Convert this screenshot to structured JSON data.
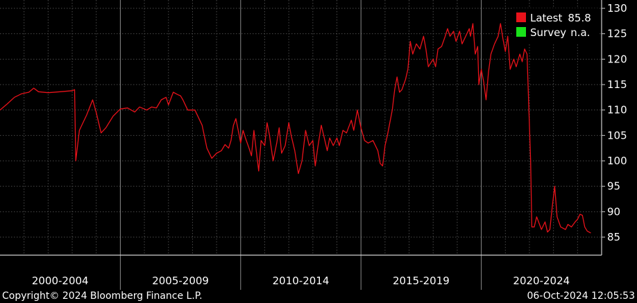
{
  "chart_data": {
    "type": "line",
    "x_range": [
      2000.0,
      2025.0
    ],
    "ylim": [
      82,
      131
    ],
    "y_ticks": [
      85,
      90,
      95,
      100,
      105,
      110,
      115,
      120,
      125,
      130
    ],
    "grid": true,
    "legend_position": "top-right",
    "periods": [
      {
        "label": "2000-2004",
        "start": 2000,
        "end": 2005
      },
      {
        "label": "2005-2009",
        "start": 2005,
        "end": 2010
      },
      {
        "label": "2010-2014",
        "start": 2010,
        "end": 2015
      },
      {
        "label": "2015-2019",
        "start": 2015,
        "end": 2020
      },
      {
        "label": "2020-2024",
        "start": 2020,
        "end": 2025
      }
    ],
    "series": [
      {
        "name": "Latest",
        "latest_value": "85.8",
        "color": "#e8121a",
        "points": [
          [
            2000.0,
            110.0
          ],
          [
            2000.3,
            111.2
          ],
          [
            2000.6,
            112.5
          ],
          [
            2000.9,
            113.2
          ],
          [
            2001.2,
            113.5
          ],
          [
            2001.4,
            114.3
          ],
          [
            2001.6,
            113.6
          ],
          [
            2002.0,
            113.4
          ],
          [
            2002.5,
            113.6
          ],
          [
            2003.0,
            113.8
          ],
          [
            2003.1,
            114.0
          ],
          [
            2003.15,
            100.0
          ],
          [
            2003.3,
            106.0
          ],
          [
            2003.6,
            109.0
          ],
          [
            2003.85,
            112.0
          ],
          [
            2004.0,
            109.5
          ],
          [
            2004.2,
            105.5
          ],
          [
            2004.4,
            106.5
          ],
          [
            2004.7,
            108.8
          ],
          [
            2005.0,
            110.2
          ],
          [
            2005.3,
            110.4
          ],
          [
            2005.6,
            109.6
          ],
          [
            2005.8,
            110.6
          ],
          [
            2006.1,
            110.0
          ],
          [
            2006.3,
            110.6
          ],
          [
            2006.5,
            110.4
          ],
          [
            2006.7,
            112.0
          ],
          [
            2006.9,
            112.5
          ],
          [
            2007.0,
            111.0
          ],
          [
            2007.2,
            113.5
          ],
          [
            2007.4,
            113.0
          ],
          [
            2007.5,
            112.8
          ],
          [
            2007.6,
            112.0
          ],
          [
            2007.8,
            110.0
          ],
          [
            2008.1,
            110.0
          ],
          [
            2008.4,
            107.0
          ],
          [
            2008.6,
            102.5
          ],
          [
            2008.8,
            100.5
          ],
          [
            2009.0,
            101.5
          ],
          [
            2009.2,
            102.0
          ],
          [
            2009.35,
            103.2
          ],
          [
            2009.5,
            102.5
          ],
          [
            2009.6,
            104.0
          ],
          [
            2009.7,
            107.0
          ],
          [
            2009.8,
            108.3
          ],
          [
            2009.9,
            106.0
          ],
          [
            2010.0,
            103.5
          ],
          [
            2010.1,
            106.0
          ],
          [
            2010.2,
            104.5
          ],
          [
            2010.35,
            102.5
          ],
          [
            2010.45,
            101.0
          ],
          [
            2010.55,
            106.0
          ],
          [
            2010.65,
            102.0
          ],
          [
            2010.75,
            98.0
          ],
          [
            2010.85,
            104.0
          ],
          [
            2011.0,
            103.0
          ],
          [
            2011.1,
            107.5
          ],
          [
            2011.2,
            105.0
          ],
          [
            2011.35,
            100.0
          ],
          [
            2011.5,
            103.5
          ],
          [
            2011.6,
            106.5
          ],
          [
            2011.7,
            101.5
          ],
          [
            2011.85,
            103.0
          ],
          [
            2012.0,
            107.5
          ],
          [
            2012.1,
            105.0
          ],
          [
            2012.25,
            102.0
          ],
          [
            2012.4,
            97.5
          ],
          [
            2012.55,
            100.0
          ],
          [
            2012.7,
            106.0
          ],
          [
            2012.85,
            103.0
          ],
          [
            2013.0,
            104.0
          ],
          [
            2013.1,
            99.0
          ],
          [
            2013.2,
            102.5
          ],
          [
            2013.35,
            107.0
          ],
          [
            2013.5,
            104.0
          ],
          [
            2013.6,
            102.0
          ],
          [
            2013.7,
            104.5
          ],
          [
            2013.85,
            103.0
          ],
          [
            2014.0,
            104.5
          ],
          [
            2014.1,
            103.0
          ],
          [
            2014.25,
            106.0
          ],
          [
            2014.4,
            105.5
          ],
          [
            2014.6,
            108.0
          ],
          [
            2014.7,
            106.0
          ],
          [
            2014.85,
            110.0
          ],
          [
            2015.0,
            106.5
          ],
          [
            2015.15,
            104.0
          ],
          [
            2015.3,
            103.5
          ],
          [
            2015.5,
            104.0
          ],
          [
            2015.7,
            102.0
          ],
          [
            2015.8,
            99.5
          ],
          [
            2015.9,
            99.0
          ],
          [
            2016.0,
            103.0
          ],
          [
            2016.1,
            105.0
          ],
          [
            2016.2,
            107.5
          ],
          [
            2016.3,
            110.0
          ],
          [
            2016.4,
            114.0
          ],
          [
            2016.5,
            116.5
          ],
          [
            2016.6,
            113.5
          ],
          [
            2016.7,
            114.0
          ],
          [
            2016.85,
            116.0
          ],
          [
            2016.95,
            118.0
          ],
          [
            2017.05,
            123.5
          ],
          [
            2017.15,
            121.0
          ],
          [
            2017.3,
            123.0
          ],
          [
            2017.45,
            122.0
          ],
          [
            2017.6,
            124.5
          ],
          [
            2017.7,
            122.0
          ],
          [
            2017.8,
            118.5
          ],
          [
            2018.0,
            120.0
          ],
          [
            2018.1,
            118.5
          ],
          [
            2018.2,
            122.0
          ],
          [
            2018.35,
            122.5
          ],
          [
            2018.5,
            124.5
          ],
          [
            2018.6,
            126.0
          ],
          [
            2018.7,
            124.5
          ],
          [
            2018.85,
            125.5
          ],
          [
            2018.95,
            123.5
          ],
          [
            2019.1,
            125.5
          ],
          [
            2019.2,
            123.0
          ],
          [
            2019.35,
            124.5
          ],
          [
            2019.5,
            126.0
          ],
          [
            2019.55,
            124.5
          ],
          [
            2019.65,
            127.0
          ],
          [
            2019.75,
            121.0
          ],
          [
            2019.85,
            122.5
          ],
          [
            2019.9,
            115.0
          ],
          [
            2020.0,
            118.0
          ],
          [
            2020.1,
            115.5
          ],
          [
            2020.2,
            112.0
          ],
          [
            2020.3,
            117.5
          ],
          [
            2020.4,
            121.0
          ],
          [
            2020.55,
            123.0
          ],
          [
            2020.7,
            124.5
          ],
          [
            2020.8,
            127.0
          ],
          [
            2020.9,
            124.0
          ],
          [
            2021.0,
            121.5
          ],
          [
            2021.1,
            124.5
          ],
          [
            2021.2,
            118.0
          ],
          [
            2021.35,
            120.0
          ],
          [
            2021.45,
            118.5
          ],
          [
            2021.6,
            121.0
          ],
          [
            2021.7,
            119.5
          ],
          [
            2021.8,
            122.0
          ],
          [
            2021.9,
            121.0
          ],
          [
            2022.05,
            100.0
          ],
          [
            2022.1,
            87.0
          ],
          [
            2022.2,
            87.0
          ],
          [
            2022.3,
            89.0
          ],
          [
            2022.5,
            86.5
          ],
          [
            2022.65,
            88.0
          ],
          [
            2022.75,
            86.0
          ],
          [
            2022.85,
            86.5
          ],
          [
            2022.95,
            91.0
          ],
          [
            2023.05,
            95.0
          ],
          [
            2023.15,
            89.0
          ],
          [
            2023.3,
            87.0
          ],
          [
            2023.5,
            86.5
          ],
          [
            2023.6,
            87.5
          ],
          [
            2023.75,
            87.0
          ],
          [
            2023.9,
            88.0
          ],
          [
            2024.0,
            88.5
          ],
          [
            2024.1,
            89.5
          ],
          [
            2024.2,
            89.3
          ],
          [
            2024.3,
            87.0
          ],
          [
            2024.4,
            86.2
          ],
          [
            2024.55,
            85.8
          ]
        ]
      },
      {
        "name": "Survey",
        "latest_value": "n.a.",
        "color": "#19e21a",
        "points": []
      }
    ]
  },
  "footer": {
    "copyright": "Copyright© 2024 Bloomberg Finance L.P.",
    "timestamp": "06-Oct-2024 12:05:53"
  }
}
